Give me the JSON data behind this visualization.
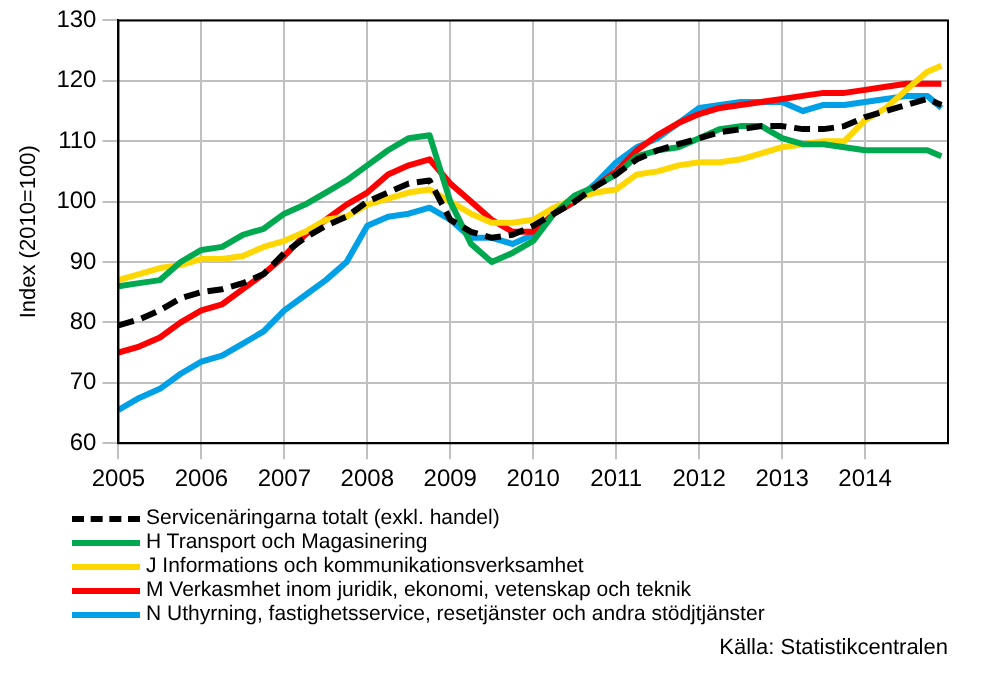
{
  "chart_data": {
    "type": "line",
    "ylabel": "Index (2010=100)",
    "xlim": [
      2005,
      2015
    ],
    "xticks": [
      2005,
      2006,
      2007,
      2008,
      2009,
      2010,
      2011,
      2012,
      2013,
      2014
    ],
    "ylim": [
      60,
      130
    ],
    "yticks": [
      60,
      70,
      80,
      90,
      100,
      110,
      120,
      130
    ],
    "grid": true,
    "legend": "bottom",
    "marker": "none",
    "x": [
      2005,
      2005.25,
      2005.5,
      2005.75,
      2006,
      2006.25,
      2006.5,
      2006.75,
      2007,
      2007.25,
      2007.5,
      2007.75,
      2008,
      2008.25,
      2008.5,
      2008.75,
      2009,
      2009.25,
      2009.5,
      2009.75,
      2010,
      2010.25,
      2010.5,
      2010.75,
      2011,
      2011.25,
      2011.5,
      2011.75,
      2012,
      2012.25,
      2012.5,
      2012.75,
      2013,
      2013.25,
      2013.5,
      2013.75,
      2014,
      2014.25,
      2014.5,
      2014.75,
      2014.92
    ],
    "series": [
      {
        "name": "Servicenäringarna totalt  (exkl. handel)",
        "color": "#000000",
        "line_style": "dashed",
        "values": [
          79.5,
          80.5,
          82,
          84,
          85,
          85.5,
          86.5,
          88,
          91.5,
          94,
          96,
          97.5,
          100,
          101.5,
          103,
          103.5,
          97,
          95,
          94,
          94.5,
          96,
          98,
          100,
          102.5,
          104.5,
          107,
          108.5,
          109.5,
          110.5,
          111.5,
          112,
          112.5,
          112.5,
          112,
          112,
          112.5,
          114,
          115,
          116,
          117,
          116
        ]
      },
      {
        "name": "H Transport och Magasinering",
        "color": "#00a84f",
        "values": [
          86,
          86.5,
          87,
          90,
          92,
          92.5,
          94.5,
          95.5,
          98,
          99.5,
          101.5,
          103.5,
          106,
          108.5,
          110.5,
          111,
          100,
          93,
          90,
          91.5,
          93.5,
          98,
          101,
          102.5,
          104.5,
          107.5,
          108.5,
          109,
          110.5,
          112,
          112.5,
          112.5,
          110.5,
          109.5,
          109.5,
          109,
          108.5,
          108.5,
          108.5,
          108.5,
          107.5
        ]
      },
      {
        "name": "J Informations och kommunikationsverksamhet",
        "color": "#ffd700",
        "values": [
          87,
          88,
          89,
          89.5,
          90.5,
          90.5,
          91,
          92.5,
          93.5,
          95,
          97,
          97.5,
          99.5,
          100.5,
          101.5,
          102,
          100,
          98,
          96.5,
          96.5,
          97,
          99,
          100.5,
          101.5,
          102,
          104.5,
          105,
          106,
          106.5,
          106.5,
          107,
          108,
          109,
          109.5,
          110,
          110,
          113.5,
          115.5,
          118.5,
          121.5,
          122.5
        ]
      },
      {
        "name": "M Verkasmhet inom juridik, ekonomi, vetenskap och teknik",
        "color": "#ff0000",
        "values": [
          75,
          76,
          77.5,
          80,
          82,
          83,
          85.5,
          88,
          91,
          94.5,
          97,
          99.5,
          101.5,
          104.5,
          106,
          107,
          103,
          100,
          97,
          95,
          95,
          98,
          100,
          102.5,
          105,
          108.5,
          111,
          113,
          114.5,
          115.5,
          116,
          116.5,
          117,
          117.5,
          118,
          118,
          118.5,
          119,
          119.5,
          119.5,
          119.5
        ]
      },
      {
        "name": "N Uthyrning, fastighetsservice, resetjänster och andra stödjtjänster",
        "color": "#00a0e6",
        "values": [
          65.5,
          67.5,
          69,
          71.5,
          73.5,
          74.5,
          76.5,
          78.5,
          82,
          84.5,
          87,
          90,
          96,
          97.5,
          98,
          99,
          97,
          94,
          94,
          93,
          94.5,
          98,
          100,
          103,
          106.5,
          109,
          110.5,
          113,
          115.5,
          116,
          116.5,
          116.5,
          116.5,
          115,
          116,
          116,
          116.5,
          117,
          117.5,
          117.5,
          115.5
        ]
      }
    ],
    "annotations": [
      "Källa:  Statistikcentralen"
    ]
  }
}
